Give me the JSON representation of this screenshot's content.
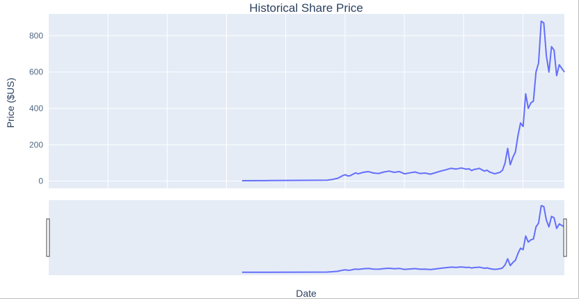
{
  "colors": {
    "plot_bg": "#e5ecf6",
    "grid": "#ffffff",
    "line": "#636efa",
    "text": "#2a3f5f",
    "tick_text": "#506784",
    "handle": "#444444"
  },
  "chart_data": {
    "type": "line",
    "title": "Historical Share Price",
    "xlabel": "Date",
    "ylabel": "Price ($US)",
    "ylim": [
      -40,
      920
    ],
    "yticks": [
      0,
      200,
      400,
      600,
      800
    ],
    "grid": true,
    "legend": "none",
    "has_range_slider": true,
    "x": [
      0.375,
      0.43,
      0.49,
      0.54,
      0.545,
      0.55,
      0.56,
      0.565,
      0.57,
      0.575,
      0.58,
      0.585,
      0.59,
      0.595,
      0.6,
      0.61,
      0.62,
      0.63,
      0.64,
      0.65,
      0.66,
      0.67,
      0.68,
      0.69,
      0.7,
      0.71,
      0.72,
      0.73,
      0.74,
      0.75,
      0.76,
      0.77,
      0.78,
      0.79,
      0.8,
      0.81,
      0.815,
      0.82,
      0.825,
      0.83,
      0.835,
      0.84,
      0.845,
      0.85,
      0.855,
      0.86,
      0.865,
      0.87,
      0.875,
      0.88,
      0.885,
      0.89,
      0.895,
      0.9,
      0.905,
      0.91,
      0.915,
      0.92,
      0.925,
      0.93,
      0.935,
      0.94,
      0.945,
      0.95,
      0.955,
      0.96,
      0.965,
      0.97,
      0.975,
      0.98,
      0.985,
      0.99,
      0.995,
      1.0
    ],
    "values": [
      2,
      3,
      4,
      5,
      7,
      9,
      15,
      22,
      30,
      35,
      28,
      30,
      38,
      45,
      40,
      48,
      52,
      44,
      42,
      50,
      55,
      48,
      52,
      40,
      45,
      50,
      42,
      44,
      38,
      46,
      55,
      62,
      70,
      66,
      72,
      65,
      68,
      58,
      64,
      66,
      70,
      62,
      55,
      60,
      50,
      45,
      40,
      44,
      48,
      60,
      100,
      180,
      90,
      130,
      160,
      250,
      320,
      300,
      480,
      400,
      430,
      440,
      600,
      650,
      880,
      870,
      690,
      600,
      740,
      720,
      580,
      640,
      620,
      600
    ]
  }
}
